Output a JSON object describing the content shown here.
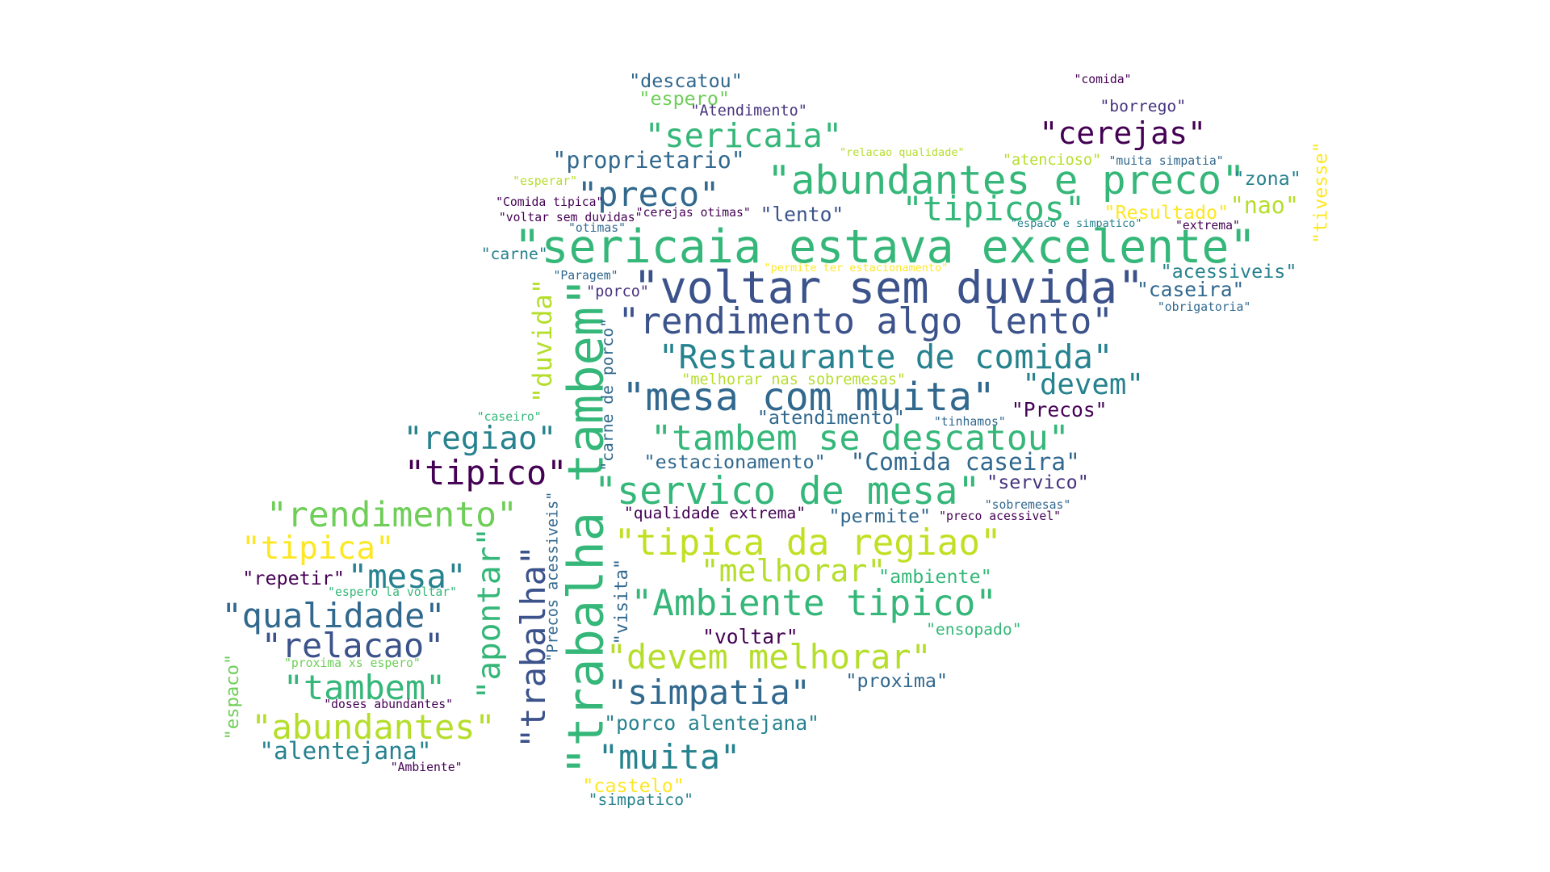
{
  "palette": {
    "dark_purple": "#440154",
    "indigo": "#3b528b",
    "blue": "#31688e",
    "teal_blue": "#26828e",
    "teal": "#1f9e89",
    "green": "#35b779",
    "light_green": "#6ece58",
    "yellow_green": "#b5de2b",
    "yellow": "#fde725"
  },
  "words": [
    {
      "text": "\"descatou\"",
      "color": "#31688e"
    },
    {
      "text": "\"comida\"",
      "color": "#440154"
    },
    {
      "text": "\"espero\"",
      "color": "#6ece58"
    },
    {
      "text": "\"borrego\"",
      "color": "#46337e"
    },
    {
      "text": "\"Atendimento\"",
      "color": "#46337e"
    },
    {
      "text": "\"sericaia\"",
      "color": "#35b779"
    },
    {
      "text": "\"cerejas\"",
      "color": "#440154"
    },
    {
      "text": "\"proprietario\"",
      "color": "#31688e"
    },
    {
      "text": "\"relacao qualidade\"",
      "color": "#b5de2b"
    },
    {
      "text": "\"atencioso\"",
      "color": "#b5de2b"
    },
    {
      "text": "\"muita simpatia\"",
      "color": "#31688e"
    },
    {
      "text": "\"esperar\"",
      "color": "#b5de2b"
    },
    {
      "text": "\"abundantes e preco\"",
      "color": "#35b779"
    },
    {
      "text": "\"zona\"",
      "color": "#26828e"
    },
    {
      "text": "\"preco\"",
      "color": "#31688e"
    },
    {
      "text": "\"tivesse\"",
      "color": "#fde725"
    },
    {
      "text": "\"Comida tipica\"",
      "color": "#440154"
    },
    {
      "text": "\"tipicos\"",
      "color": "#35b779"
    },
    {
      "text": "\"nao\"",
      "color": "#b5de2b"
    },
    {
      "text": "\"lento\"",
      "color": "#3b528b"
    },
    {
      "text": "\"Resultado\"",
      "color": "#fde725"
    },
    {
      "text": "\"voltar sem duvidas\"",
      "color": "#440154"
    },
    {
      "text": "\"cerejas otimas\"",
      "color": "#440154"
    },
    {
      "text": "\"otimas\"",
      "color": "#31688e"
    },
    {
      "text": "\"espaco e simpatico\"",
      "color": "#26828e"
    },
    {
      "text": "\"extrema\"",
      "color": "#440154"
    },
    {
      "text": "\"sericaia estava excelente\"",
      "color": "#35b779"
    },
    {
      "text": "\"carne\"",
      "color": "#26828e"
    },
    {
      "text": "\"permite ter estacionamento\"",
      "color": "#fde725"
    },
    {
      "text": "\"acessiveis\"",
      "color": "#26828e"
    },
    {
      "text": "\"Paragem\"",
      "color": "#31688e"
    },
    {
      "text": "\"voltar sem duvida\"",
      "color": "#3b528b"
    },
    {
      "text": "\"caseira\"",
      "color": "#31688e"
    },
    {
      "text": "\"porco\"",
      "color": "#46337e"
    },
    {
      "text": "\"obrigatoria\"",
      "color": "#31688e"
    },
    {
      "text": "\"duvida\"",
      "color": "#b5de2b"
    },
    {
      "text": "\"trabalha tambem\"",
      "color": "#35b779"
    },
    {
      "text": "\"rendimento algo lento\"",
      "color": "#3b528b"
    },
    {
      "text": "\"Restaurante de comida\"",
      "color": "#26828e"
    },
    {
      "text": "\"carne de porco\"",
      "color": "#31688e"
    },
    {
      "text": "\"melhorar nas sobremesas\"",
      "color": "#b5de2b"
    },
    {
      "text": "\"mesa com muita\"",
      "color": "#31688e"
    },
    {
      "text": "\"devem\"",
      "color": "#26828e"
    },
    {
      "text": "\"caseiro\"",
      "color": "#35b779"
    },
    {
      "text": "\"atendimento\"",
      "color": "#31688e"
    },
    {
      "text": "\"tinhamos\"",
      "color": "#31688e"
    },
    {
      "text": "\"Precos\"",
      "color": "#440154"
    },
    {
      "text": "\"regiao\"",
      "color": "#26828e"
    },
    {
      "text": "\"tambem se descatou\"",
      "color": "#35b779"
    },
    {
      "text": "\"tipico\"",
      "color": "#440154"
    },
    {
      "text": "\"estacionamento\"",
      "color": "#31688e"
    },
    {
      "text": "\"Comida caseira\"",
      "color": "#31688e"
    },
    {
      "text": "\"servico de mesa\"",
      "color": "#35b779"
    },
    {
      "text": "\"servico\"",
      "color": "#46337e"
    },
    {
      "text": "\"rendimento\"",
      "color": "#6ece58"
    },
    {
      "text": "\"qualidade extrema\"",
      "color": "#440154"
    },
    {
      "text": "\"permite\"",
      "color": "#31688e"
    },
    {
      "text": "\"sobremesas\"",
      "color": "#31688e"
    },
    {
      "text": "\"preco acessivel\"",
      "color": "#440154"
    },
    {
      "text": "\"Precos acessiveis\"",
      "color": "#31688e"
    },
    {
      "text": "\"tipica\"",
      "color": "#fde725"
    },
    {
      "text": "\"tipica da regiao\"",
      "color": "#c2df23"
    },
    {
      "text": "\"trabalha\"",
      "color": "#3b528b"
    },
    {
      "text": "\"apontar\"",
      "color": "#35b779"
    },
    {
      "text": "\"mesa\"",
      "color": "#26828e"
    },
    {
      "text": "\"repetir\"",
      "color": "#440154"
    },
    {
      "text": "\"melhorar\"",
      "color": "#b5de2b"
    },
    {
      "text": "\"ambiente\"",
      "color": "#35b779"
    },
    {
      "text": "\"visita\"",
      "color": "#31688e"
    },
    {
      "text": "\"espero la voltar\"",
      "color": "#35b779"
    },
    {
      "text": "\"qualidade\"",
      "color": "#31688e"
    },
    {
      "text": "\"Ambiente tipico\"",
      "color": "#35b779"
    },
    {
      "text": "\"ensopado\"",
      "color": "#35b779"
    },
    {
      "text": "\"voltar\"",
      "color": "#440154"
    },
    {
      "text": "\"relacao\"",
      "color": "#3b528b"
    },
    {
      "text": "\"espaco\"",
      "color": "#6ece58"
    },
    {
      "text": "\"proxima xs espero\"",
      "color": "#6ece58"
    },
    {
      "text": "\"devem melhorar\"",
      "color": "#b5de2b"
    },
    {
      "text": "\"tambem\"",
      "color": "#35b779"
    },
    {
      "text": "\"proxima\"",
      "color": "#31688e"
    },
    {
      "text": "\"simpatia\"",
      "color": "#31688e"
    },
    {
      "text": "\"doses abundantes\"",
      "color": "#440154"
    },
    {
      "text": "\"abundantes\"",
      "color": "#b5de2b"
    },
    {
      "text": "\"porco alentejana\"",
      "color": "#26828e"
    },
    {
      "text": "\"alentejana\"",
      "color": "#26828e"
    },
    {
      "text": "\"muita\"",
      "color": "#26828e"
    },
    {
      "text": "\"Ambiente\"",
      "color": "#440154"
    },
    {
      "text": "\"castelo\"",
      "color": "#fde725"
    },
    {
      "text": "\"simpatico\"",
      "color": "#26828e"
    }
  ]
}
